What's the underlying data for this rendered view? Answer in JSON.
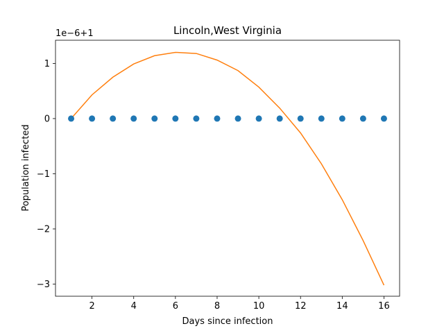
{
  "chart_data": {
    "type": "line+scatter",
    "title": "Lincoln,West Virginia",
    "xlabel": "Days since infection",
    "ylabel": "Population infected",
    "offset_label": "1e−6+1",
    "xlim": [
      0.25,
      16.75
    ],
    "ylim": [
      -3.22,
      1.42
    ],
    "xticks": [
      {
        "value": 2,
        "label": "2"
      },
      {
        "value": 4,
        "label": "4"
      },
      {
        "value": 6,
        "label": "6"
      },
      {
        "value": 8,
        "label": "8"
      },
      {
        "value": 10,
        "label": "10"
      },
      {
        "value": 12,
        "label": "12"
      },
      {
        "value": 14,
        "label": "14"
      },
      {
        "value": 16,
        "label": "16"
      }
    ],
    "yticks": [
      {
        "value": 1,
        "label": "1"
      },
      {
        "value": 0,
        "label": "0"
      },
      {
        "value": -1,
        "label": "−1"
      },
      {
        "value": -2,
        "label": "−2"
      },
      {
        "value": -3,
        "label": "−3"
      }
    ],
    "grid": false,
    "legend": "none",
    "series": [
      {
        "kind": "scatter",
        "color": "#1f77b4",
        "x": [
          1,
          2,
          3,
          4,
          5,
          6,
          7,
          8,
          9,
          10,
          11,
          12,
          13,
          14,
          15,
          16
        ],
        "y": [
          0,
          0,
          0,
          0,
          0,
          0,
          0,
          0,
          0,
          0,
          0,
          0,
          0,
          0,
          0,
          0
        ]
      },
      {
        "kind": "line",
        "color": "#ff7f0e",
        "x": [
          1,
          2,
          3,
          4,
          5,
          6,
          7,
          8,
          9,
          10,
          11,
          12,
          13,
          14,
          15,
          16
        ],
        "y": [
          0.0,
          0.43,
          0.75,
          0.99,
          1.14,
          1.2,
          1.18,
          1.06,
          0.87,
          0.57,
          0.19,
          -0.26,
          -0.82,
          -1.47,
          -2.21,
          -3.02
        ]
      }
    ]
  }
}
